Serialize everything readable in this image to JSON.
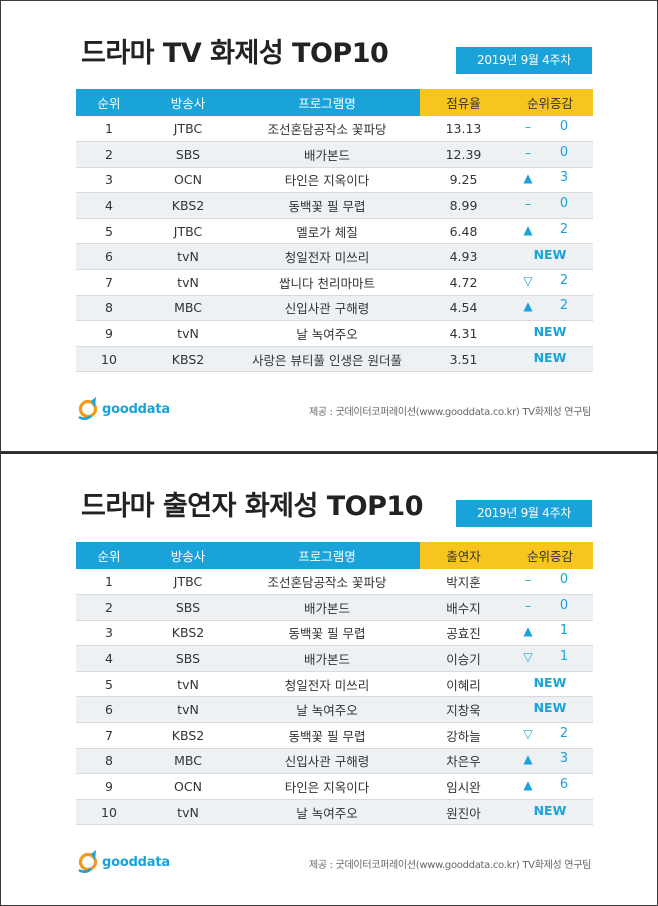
{
  "tables": [
    {
      "title": "드라마 TV 화제성 TOP10",
      "week": "2019년 9월 4주차",
      "headers": [
        "순위",
        "방송사",
        "프로그램명",
        "점유율",
        "순위증감"
      ],
      "rows": [
        {
          "rank": "1",
          "channel": "JTBC",
          "program": "조선혼담공작소 꽃파당",
          "value": "13.13",
          "change_symbol": "–",
          "change_value": "0"
        },
        {
          "rank": "2",
          "channel": "SBS",
          "program": "배가본드",
          "value": "12.39",
          "change_symbol": "–",
          "change_value": "0"
        },
        {
          "rank": "3",
          "channel": "OCN",
          "program": "타인은 지옥이다",
          "value": "9.25",
          "change_symbol": "▲",
          "change_value": "3"
        },
        {
          "rank": "4",
          "channel": "KBS2",
          "program": "동백꽃 필 무렵",
          "value": "8.99",
          "change_symbol": "–",
          "change_value": "0"
        },
        {
          "rank": "5",
          "channel": "JTBC",
          "program": "멜로가 체질",
          "value": "6.48",
          "change_symbol": "▲",
          "change_value": "2"
        },
        {
          "rank": "6",
          "channel": "tvN",
          "program": "청일전자 미쓰리",
          "value": "4.93",
          "change_symbol": "",
          "change_value": "NEW"
        },
        {
          "rank": "7",
          "channel": "tvN",
          "program": "쌉니다 천리마마트",
          "value": "4.72",
          "change_symbol": "▽",
          "change_value": "2"
        },
        {
          "rank": "8",
          "channel": "MBC",
          "program": "신입사관 구해령",
          "value": "4.54",
          "change_symbol": "▲",
          "change_value": "2"
        },
        {
          "rank": "9",
          "channel": "tvN",
          "program": "날 녹여주오",
          "value": "4.31",
          "change_symbol": "",
          "change_value": "NEW"
        },
        {
          "rank": "10",
          "channel": "KBS2",
          "program": "사랑은 뷰티풀 인생은 원더풀",
          "value": "3.51",
          "change_symbol": "",
          "change_value": "NEW"
        }
      ],
      "logo_text": "gooddata",
      "source": "제공 : 굿데이터코퍼레이션(www.gooddata.co.kr) TV화제성 연구팀"
    },
    {
      "title": "드라마 출연자 화제성 TOP10",
      "week": "2019년 9월 4주차",
      "headers": [
        "순위",
        "방송사",
        "프로그램명",
        "출연자",
        "순위증감"
      ],
      "rows": [
        {
          "rank": "1",
          "channel": "JTBC",
          "program": "조선혼담공작소 꽃파당",
          "value": "박지훈",
          "change_symbol": "–",
          "change_value": "0"
        },
        {
          "rank": "2",
          "channel": "SBS",
          "program": "배가본드",
          "value": "배수지",
          "change_symbol": "–",
          "change_value": "0"
        },
        {
          "rank": "3",
          "channel": "KBS2",
          "program": "동백꽃 필 무렵",
          "value": "공효진",
          "change_symbol": "▲",
          "change_value": "1"
        },
        {
          "rank": "4",
          "channel": "SBS",
          "program": "배가본드",
          "value": "이승기",
          "change_symbol": "▽",
          "change_value": "1"
        },
        {
          "rank": "5",
          "channel": "tvN",
          "program": "청일전자 미쓰리",
          "value": "이혜리",
          "change_symbol": "",
          "change_value": "NEW"
        },
        {
          "rank": "6",
          "channel": "tvN",
          "program": "날 녹여주오",
          "value": "지창욱",
          "change_symbol": "",
          "change_value": "NEW"
        },
        {
          "rank": "7",
          "channel": "KBS2",
          "program": "동백꽃 필 무렵",
          "value": "강하늘",
          "change_symbol": "▽",
          "change_value": "2"
        },
        {
          "rank": "8",
          "channel": "MBC",
          "program": "신입사관 구해령",
          "value": "차은우",
          "change_symbol": "▲",
          "change_value": "3"
        },
        {
          "rank": "9",
          "channel": "OCN",
          "program": "타인은 지옥이다",
          "value": "임시완",
          "change_symbol": "▲",
          "change_value": "6"
        },
        {
          "rank": "10",
          "channel": "tvN",
          "program": "날 녹여주오",
          "value": "원진아",
          "change_symbol": "",
          "change_value": "NEW"
        }
      ],
      "logo_text": "gooddata",
      "source": "제공 : 굿데이터코퍼레이션(www.gooddata.co.kr) TV화제성 연구팀"
    }
  ],
  "colors": {
    "header_blue": "#1aa3d9",
    "header_gold": "#f7c51d",
    "row_shade": "#eef1f4",
    "logo_orange": "#f39a1e"
  },
  "icons": {
    "logo": "gooddata-logo-icon",
    "up": "up-triangle-icon",
    "down": "down-triangle-outline-icon",
    "same": "dash-icon"
  }
}
